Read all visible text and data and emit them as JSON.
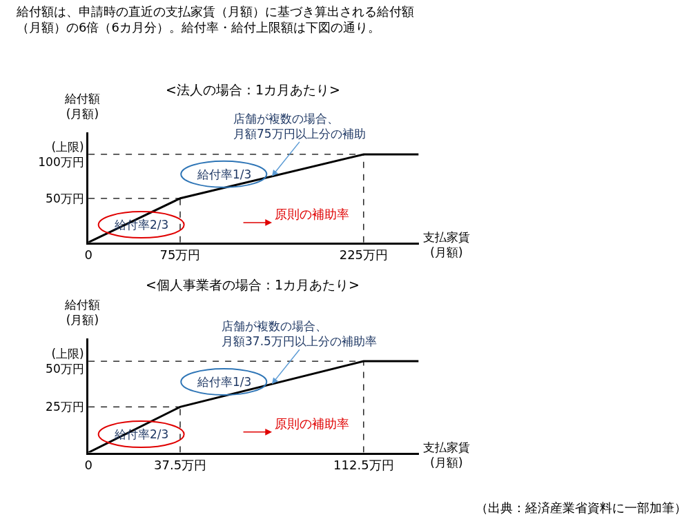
{
  "chart_data": [
    {
      "type": "line",
      "title": "<法人の場合：1カ月あたり>",
      "xlabel": "支払家賃\n(月額)",
      "ylabel": "給付額\n(月額)",
      "x": [
        0,
        75,
        225,
        270
      ],
      "series": [
        {
          "color": "#000000",
          "values": [
            0,
            50,
            100,
            100
          ]
        }
      ],
      "xlim": [
        0,
        270
      ],
      "ylim": [
        0,
        125
      ],
      "xticks": [
        0,
        {
          "value": 75,
          "label": "75万円"
        },
        {
          "value": 225,
          "label": "225万円"
        }
      ],
      "yticks": [
        {
          "value": 50,
          "label": "50万円"
        },
        {
          "value": 100,
          "label": "(上限)\n100万円"
        }
      ],
      "ref_lines": [
        {
          "axis": "y",
          "value": 50,
          "color": "#000000",
          "line_style": "dashed"
        },
        {
          "axis": "y",
          "value": 100,
          "color": "#000000",
          "line_style": "dashed"
        },
        {
          "axis": "x",
          "value": 75,
          "color": "#000000",
          "line_style": "dashed"
        },
        {
          "axis": "x",
          "value": 225,
          "color": "#000000",
          "line_style": "dashed"
        }
      ],
      "annotations": [
        "給付額は、申請時の直近の支払家賃（月額）に基づき算出される給付額（月額）の6倍（6カ月分）。給付率・給付上限額は下図の通り。",
        {
          "text": "店舗が複数の場合、月額75万円以上分の補助",
          "x": 150,
          "y": 75
        },
        "給付率1/3",
        "給付率2/3",
        "原則の補助率"
      ],
      "marker": "none",
      "line_style": "solid"
    },
    {
      "type": "line",
      "title": "<個人事業者の場合：1カ月あたり>",
      "xlabel": "支払家賃\n(月額)",
      "ylabel": "給付額\n(月額)",
      "x": [
        0,
        37.5,
        112.5,
        135
      ],
      "series": [
        {
          "color": "#000000",
          "values": [
            0,
            25,
            50,
            50
          ]
        }
      ],
      "xlim": [
        0,
        135
      ],
      "ylim": [
        0,
        62.5
      ],
      "xticks": [
        0,
        {
          "value": 37.5,
          "label": "37.5万円"
        },
        {
          "value": 112.5,
          "label": "112.5万円"
        }
      ],
      "yticks": [
        {
          "value": 25,
          "label": "25万円"
        },
        {
          "value": 50,
          "label": "(上限)\n50万円"
        }
      ],
      "ref_lines": [
        {
          "axis": "y",
          "value": 25,
          "color": "#000000",
          "line_style": "dashed"
        },
        {
          "axis": "y",
          "value": 50,
          "color": "#000000",
          "line_style": "dashed"
        },
        {
          "axis": "x",
          "value": 37.5,
          "color": "#000000",
          "line_style": "dashed"
        },
        {
          "axis": "x",
          "value": 112.5,
          "color": "#000000",
          "line_style": "dashed"
        }
      ],
      "annotations": [
        {
          "text": "店舗が複数の場合、月額37.5万円以上分の補助率",
          "x": 75,
          "y": 37.5
        },
        "給付率1/3",
        "給付率2/3",
        "原則の補助率",
        "（出典：経済産業省資料に一部加筆）"
      ],
      "marker": "none",
      "line_style": "solid"
    }
  ]
}
